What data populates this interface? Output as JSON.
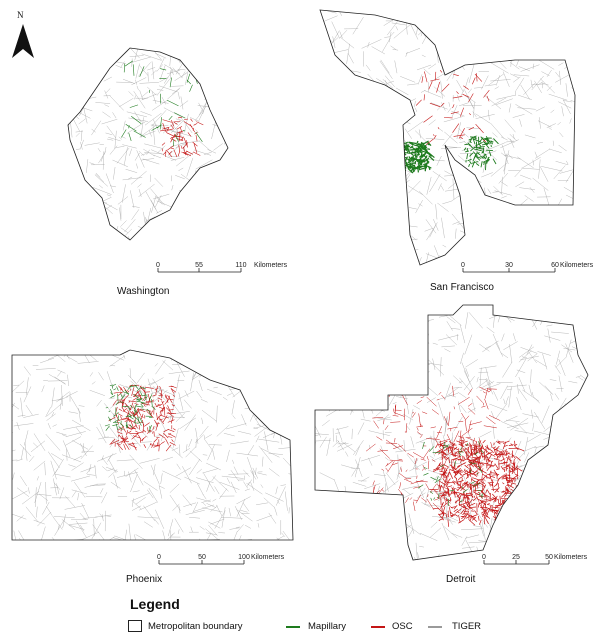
{
  "north_arrow": {
    "label": "N"
  },
  "panels": [
    {
      "id": "washington",
      "title": "Washington",
      "scale": {
        "ticks": [
          "0",
          "55",
          "110"
        ],
        "unit": "Kilometers"
      }
    },
    {
      "id": "sanfrancisco",
      "title": "San Francisco",
      "scale": {
        "ticks": [
          "0",
          "30",
          "60"
        ],
        "unit": "Kilometers"
      }
    },
    {
      "id": "phoenix",
      "title": "Phoenix",
      "scale": {
        "ticks": [
          "0",
          "50",
          "100"
        ],
        "unit": "Kilometers"
      }
    },
    {
      "id": "detroit",
      "title": "Detroit",
      "scale": {
        "ticks": [
          "0",
          "25",
          "50"
        ],
        "unit": "Kilometers"
      }
    }
  ],
  "legend": {
    "title": "Legend",
    "items": [
      {
        "label": "Metropolitan boundary",
        "color": "#222222"
      },
      {
        "label": "Mapillary",
        "color": "#1e7b1e"
      },
      {
        "label": "OSC",
        "color": "#c41616"
      },
      {
        "label": "TIGER",
        "color": "#9a9a9a"
      }
    ]
  },
  "colors": {
    "road": "#9a9a9a",
    "mapillary": "#1e7b1e",
    "osc": "#c41616",
    "boundary": "#222222"
  }
}
